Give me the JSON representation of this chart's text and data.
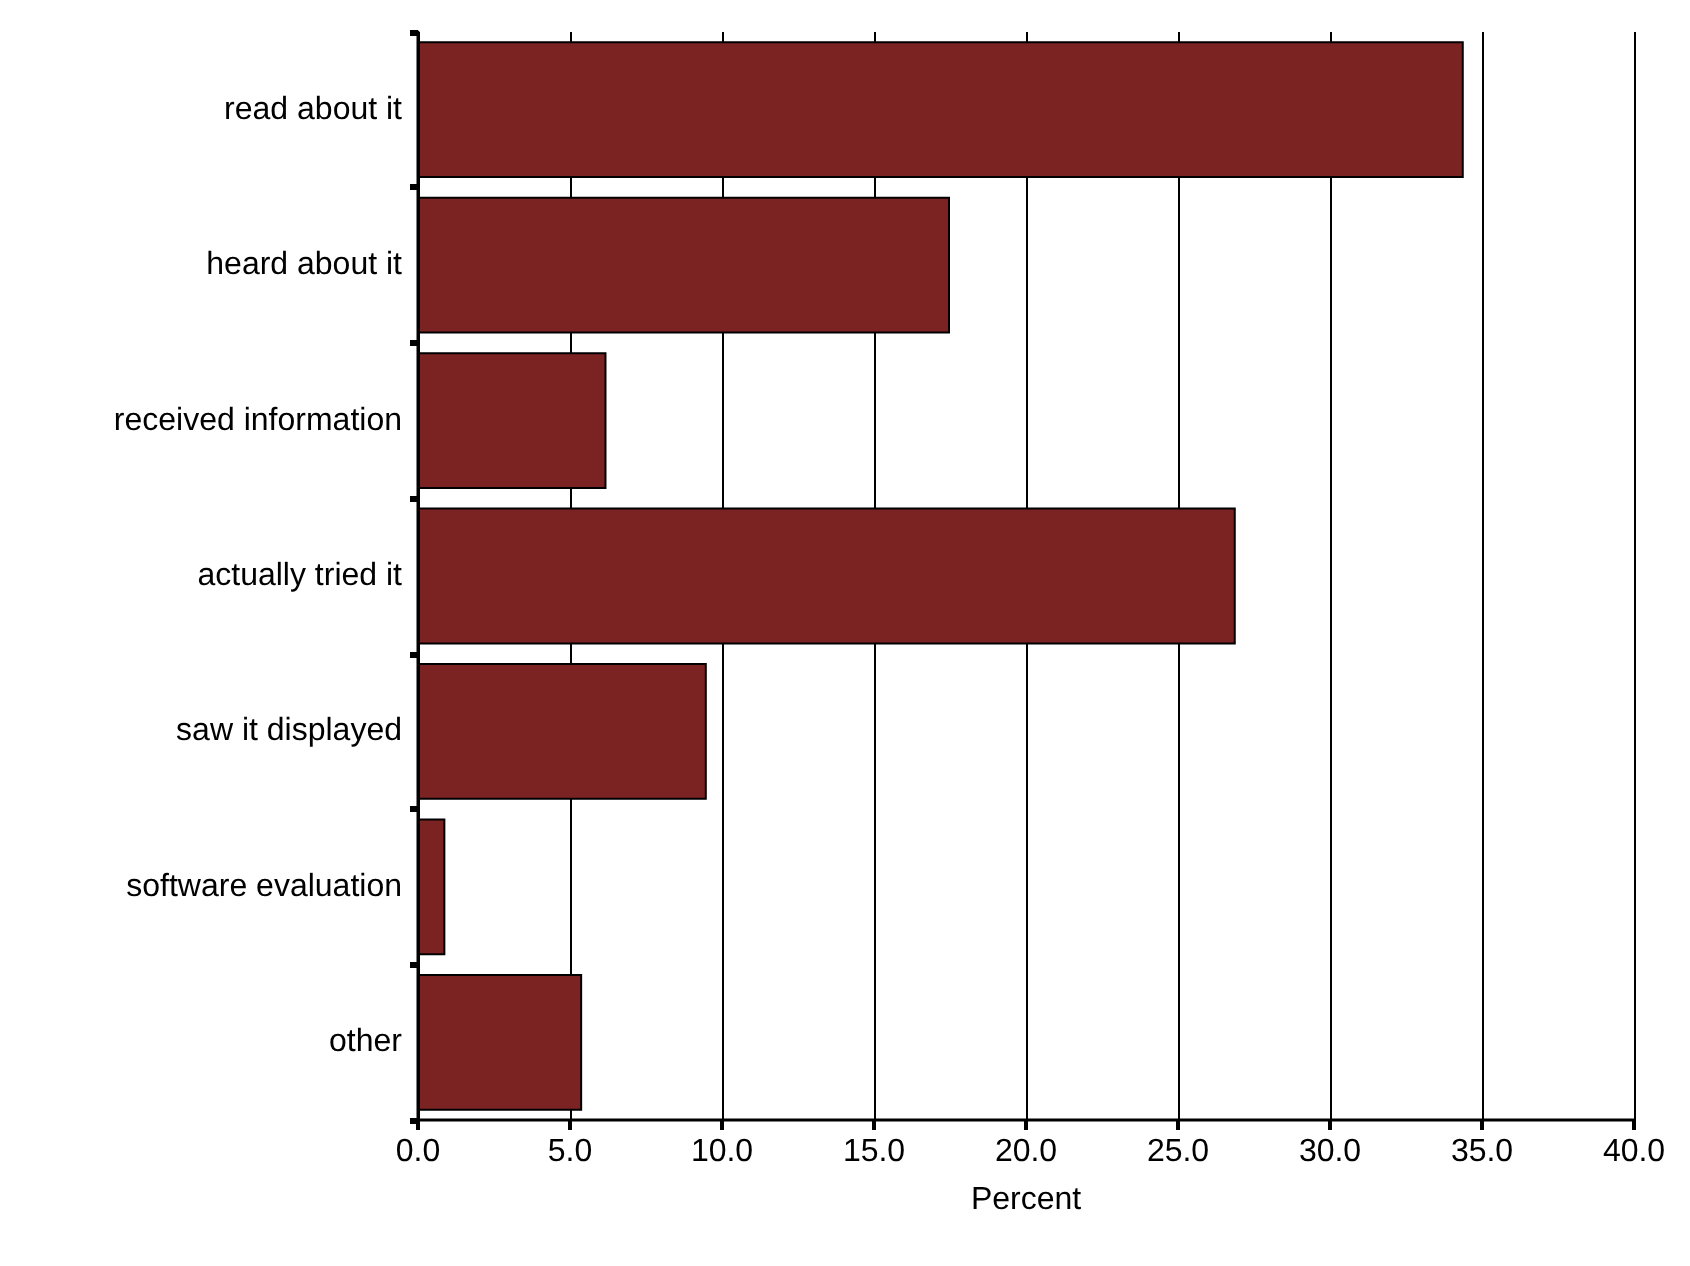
{
  "chart_data": {
    "type": "bar",
    "orientation": "horizontal",
    "xlabel": "Percent",
    "categories": [
      "read about it",
      "heard about it",
      "received information",
      "actually tried it",
      "saw it displayed",
      "software evaluation",
      "other"
    ],
    "values": [
      34.4,
      17.5,
      6.2,
      26.9,
      9.5,
      0.9,
      5.4
    ],
    "color": "#7b2323",
    "xlim": [
      0,
      40
    ],
    "xticks": [
      {
        "value": 0,
        "label": "0.0"
      },
      {
        "value": 5,
        "label": "5.0"
      },
      {
        "value": 10,
        "label": "10.0"
      },
      {
        "value": 15,
        "label": "15.0"
      },
      {
        "value": 20,
        "label": "20.0"
      },
      {
        "value": 25,
        "label": "25.0"
      },
      {
        "value": 30,
        "label": "30.0"
      },
      {
        "value": 35,
        "label": "35.0"
      },
      {
        "value": 40,
        "label": "40.0"
      }
    ],
    "grid": "x"
  }
}
